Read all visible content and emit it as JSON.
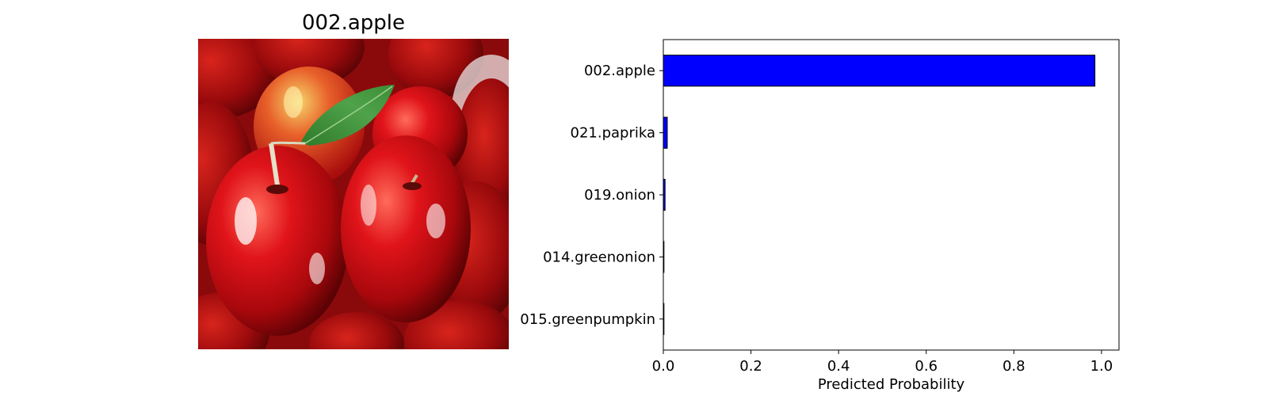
{
  "image_panel": {
    "title": "002.apple"
  },
  "chart_data": {
    "type": "bar",
    "orientation": "horizontal",
    "categories": [
      "002.apple",
      "021.paprika",
      "019.onion",
      "014.greenonion",
      "015.greenpumpkin"
    ],
    "values": [
      0.985,
      0.009,
      0.004,
      0.001,
      0.001
    ],
    "xlabel": "Predicted Probability",
    "ylabel": "",
    "xlim": [
      0,
      1.04
    ],
    "xticks": [
      0.0,
      0.2,
      0.4,
      0.6,
      0.8,
      1.0
    ],
    "xtick_labels": [
      "0.0",
      "0.2",
      "0.4",
      "0.6",
      "0.8",
      "1.0"
    ],
    "bar_color": "#0000ff",
    "edge_color": "#000000",
    "grid": false,
    "legend": "none"
  }
}
